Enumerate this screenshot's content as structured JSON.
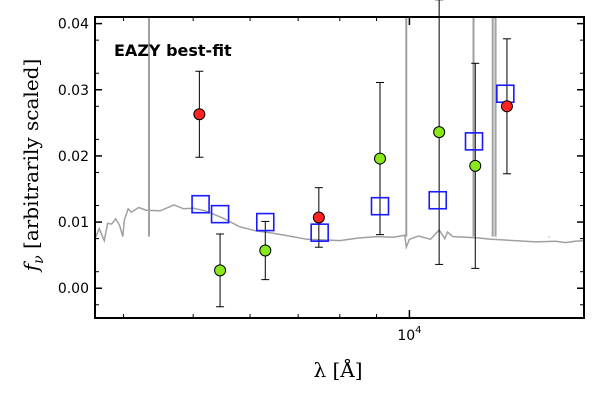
{
  "chart_data": {
    "type": "scatter",
    "title": "",
    "annotation": "EAZY best-fit",
    "xlabel": "λ [Å]",
    "ylabel": "fν [arbitrarily scaled]",
    "xscale": "log",
    "xlim": [
      3650,
      17500
    ],
    "ylim": [
      -0.0045,
      0.041
    ],
    "grid": false,
    "y_ticks": [
      0.0,
      0.01,
      0.02,
      0.03,
      0.04
    ],
    "y_tick_labels": [
      "0.00",
      "0.01",
      "0.02",
      "0.03",
      "0.04"
    ],
    "x_ticks": [
      10000
    ],
    "x_tick_labels": [
      "10^4"
    ],
    "colors": {
      "annotation": "#ff0000",
      "red_points": "#ff2222",
      "green_points": "#88e81a",
      "model_boxes": "#1a1aff",
      "template": "#a0a0a0"
    },
    "series": [
      {
        "marker": "red-circle",
        "points": [
          {
            "x": 5100,
            "y": 0.0263,
            "err": 0.0065
          },
          {
            "x": 7480,
            "y": 0.0107,
            "err": 0.0045
          },
          {
            "x": 13670,
            "y": 0.0275,
            "err": 0.0102
          }
        ]
      },
      {
        "marker": "green-circle",
        "points": [
          {
            "x": 5450,
            "y": 0.0027,
            "err": 0.0055
          },
          {
            "x": 6300,
            "y": 0.0057,
            "err": 0.0044
          },
          {
            "x": 9100,
            "y": 0.0196,
            "err": 0.0115
          },
          {
            "x": 11000,
            "y": 0.0236,
            "err": 0.02
          },
          {
            "x": 12350,
            "y": 0.0185,
            "err": 0.0155
          }
        ]
      },
      {
        "marker": "blue-open-square",
        "points": [
          {
            "x": 5120,
            "y": 0.0127
          },
          {
            "x": 5450,
            "y": 0.0112
          },
          {
            "x": 6300,
            "y": 0.01
          },
          {
            "x": 7500,
            "y": 0.0084
          },
          {
            "x": 9100,
            "y": 0.0124
          },
          {
            "x": 10950,
            "y": 0.0133
          },
          {
            "x": 12300,
            "y": 0.0222
          },
          {
            "x": 13600,
            "y": 0.0294
          }
        ]
      },
      {
        "type": "line",
        "marker": "template-spectrum",
        "x": [
          3650,
          3700,
          3760,
          3800,
          3850,
          3900,
          3950,
          3990,
          4010,
          4060,
          4100,
          4200,
          4300,
          4500,
          4700,
          4850,
          5000,
          5200,
          5500,
          5800,
          6100,
          6400,
          6800,
          7200,
          7600,
          8000,
          8500,
          9000,
          9500,
          9850,
          9900,
          10000,
          10300,
          10700,
          11000,
          11200,
          11300,
          11500,
          12000,
          12500,
          13000,
          14000,
          15000,
          16000,
          16500,
          17000,
          17500
        ],
        "y": [
          0.0075,
          0.009,
          0.0072,
          0.0098,
          0.0097,
          0.0105,
          0.0095,
          0.0078,
          0.0103,
          0.012,
          0.0115,
          0.0122,
          0.0118,
          0.0117,
          0.0126,
          0.012,
          0.0121,
          0.0117,
          0.0106,
          0.0093,
          0.0087,
          0.0084,
          0.0079,
          0.0074,
          0.0073,
          0.0072,
          0.0076,
          0.0078,
          0.0077,
          0.008,
          0.0062,
          0.0074,
          0.0079,
          0.0074,
          0.0088,
          0.0075,
          0.0085,
          0.0078,
          0.0077,
          0.0076,
          0.0074,
          0.0072,
          0.007,
          0.0071,
          0.0069,
          0.0071,
          0.0072
        ]
      },
      {
        "type": "emission-lines",
        "marker": "template-emission",
        "lines": [
          {
            "x": 4340,
            "top": 0.041
          },
          {
            "x": 9900,
            "top": 0.041
          },
          {
            "x": 12280,
            "top": 0.041
          },
          {
            "x": 13060,
            "top": 0.041
          },
          {
            "x": 13180,
            "top": 0.041
          },
          {
            "x": 15650,
            "top": 0.0077
          }
        ]
      }
    ]
  }
}
